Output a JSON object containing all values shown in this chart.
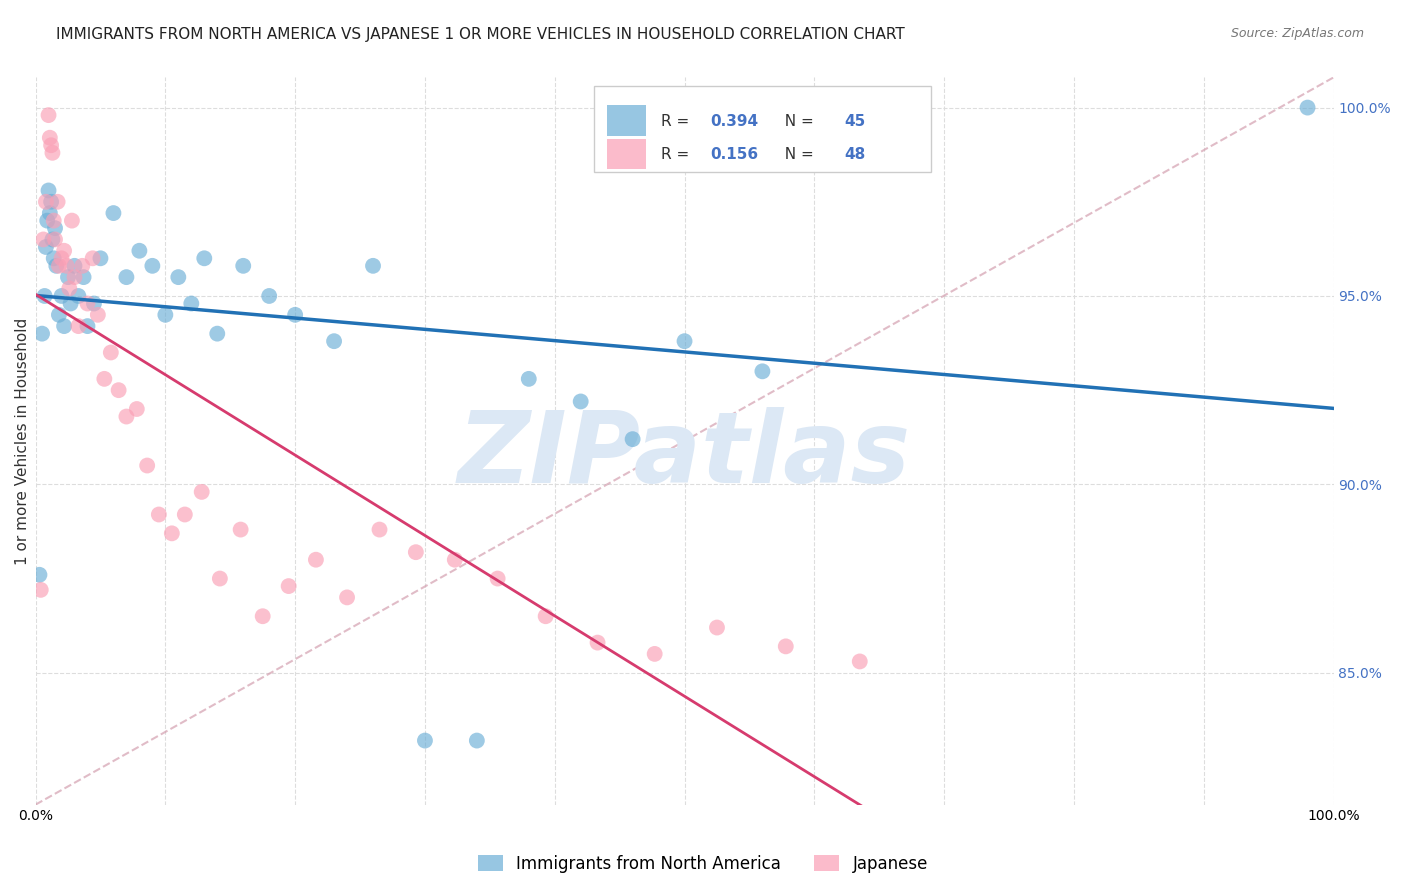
{
  "title": "IMMIGRANTS FROM NORTH AMERICA VS JAPANESE 1 OR MORE VEHICLES IN HOUSEHOLD CORRELATION CHART",
  "source": "Source: ZipAtlas.com",
  "xlabel": "",
  "ylabel": "1 or more Vehicles in Household",
  "xlim": [
    0.0,
    1.0
  ],
  "ylim": [
    0.815,
    1.008
  ],
  "x_ticks": [
    0.0,
    0.1,
    0.2,
    0.3,
    0.4,
    0.5,
    0.6,
    0.7,
    0.8,
    0.9,
    1.0
  ],
  "x_tick_labels": [
    "0.0%",
    "",
    "",
    "",
    "",
    "",
    "",
    "",
    "",
    "",
    "100.0%"
  ],
  "y_ticks": [
    0.85,
    0.9,
    0.95,
    1.0
  ],
  "y_tick_labels": [
    "85.0%",
    "90.0%",
    "95.0%",
    "100.0%"
  ],
  "legend_blue_label": "Immigrants from North America",
  "legend_pink_label": "Japanese",
  "R_blue": 0.394,
  "N_blue": 45,
  "R_pink": 0.156,
  "N_pink": 48,
  "blue_color": "#6baed6",
  "pink_color": "#fa9fb5",
  "blue_line_color": "#2171b5",
  "pink_line_color": "#d63b6e",
  "blue_scatter_x": [
    0.003,
    0.005,
    0.007,
    0.008,
    0.009,
    0.01,
    0.011,
    0.012,
    0.013,
    0.014,
    0.015,
    0.016,
    0.018,
    0.02,
    0.022,
    0.025,
    0.027,
    0.03,
    0.033,
    0.037,
    0.04,
    0.045,
    0.05,
    0.06,
    0.07,
    0.08,
    0.09,
    0.1,
    0.11,
    0.12,
    0.13,
    0.14,
    0.16,
    0.18,
    0.2,
    0.23,
    0.26,
    0.3,
    0.34,
    0.38,
    0.42,
    0.46,
    0.5,
    0.56,
    0.98
  ],
  "blue_scatter_y": [
    0.876,
    0.94,
    0.95,
    0.963,
    0.97,
    0.978,
    0.972,
    0.975,
    0.965,
    0.96,
    0.968,
    0.958,
    0.945,
    0.95,
    0.942,
    0.955,
    0.948,
    0.958,
    0.95,
    0.955,
    0.942,
    0.948,
    0.96,
    0.972,
    0.955,
    0.962,
    0.958,
    0.945,
    0.955,
    0.948,
    0.96,
    0.94,
    0.958,
    0.95,
    0.945,
    0.938,
    0.958,
    0.832,
    0.832,
    0.928,
    0.922,
    0.912,
    0.938,
    0.93,
    1.0
  ],
  "pink_scatter_x": [
    0.004,
    0.006,
    0.008,
    0.01,
    0.011,
    0.012,
    0.013,
    0.014,
    0.015,
    0.017,
    0.018,
    0.02,
    0.022,
    0.024,
    0.026,
    0.028,
    0.03,
    0.033,
    0.036,
    0.04,
    0.044,
    0.048,
    0.053,
    0.058,
    0.064,
    0.07,
    0.078,
    0.086,
    0.095,
    0.105,
    0.115,
    0.128,
    0.142,
    0.158,
    0.175,
    0.195,
    0.216,
    0.24,
    0.265,
    0.293,
    0.323,
    0.356,
    0.393,
    0.433,
    0.477,
    0.525,
    0.578,
    0.635
  ],
  "pink_scatter_y": [
    0.872,
    0.965,
    0.975,
    0.998,
    0.992,
    0.99,
    0.988,
    0.97,
    0.965,
    0.975,
    0.958,
    0.96,
    0.962,
    0.958,
    0.952,
    0.97,
    0.955,
    0.942,
    0.958,
    0.948,
    0.96,
    0.945,
    0.928,
    0.935,
    0.925,
    0.918,
    0.92,
    0.905,
    0.892,
    0.887,
    0.892,
    0.898,
    0.875,
    0.888,
    0.865,
    0.873,
    0.88,
    0.87,
    0.888,
    0.882,
    0.88,
    0.875,
    0.865,
    0.858,
    0.855,
    0.862,
    0.857,
    0.853
  ],
  "background_color": "#ffffff",
  "title_fontsize": 11,
  "axis_label_fontsize": 11,
  "tick_fontsize": 10,
  "legend_fontsize": 12,
  "watermark_text": "ZIPatlas",
  "watermark_color": "#dce8f5",
  "watermark_fontsize": 72
}
